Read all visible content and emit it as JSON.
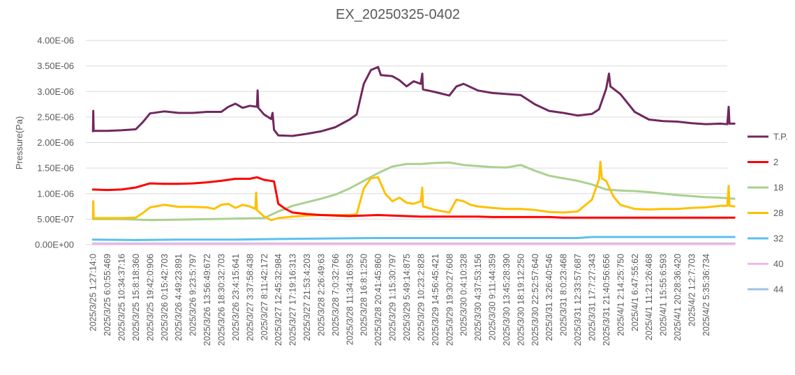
{
  "chart_data": {
    "type": "line",
    "title": "EX_20250325-0402",
    "ylabel": "Pressure(Pa)",
    "xlabel": "",
    "ylim": [
      0,
      4e-06
    ],
    "yticks": [
      {
        "value": 0,
        "label": "0.00E+00"
      },
      {
        "value": 5e-07,
        "label": "5.00E-07"
      },
      {
        "value": 1e-06,
        "label": "1.00E-06"
      },
      {
        "value": 1.5e-06,
        "label": "1.50E-06"
      },
      {
        "value": 2e-06,
        "label": "2.00E-06"
      },
      {
        "value": 2.5e-06,
        "label": "2.50E-06"
      },
      {
        "value": 3e-06,
        "label": "3.00E-06"
      },
      {
        "value": 3.5e-06,
        "label": "3.50E-06"
      },
      {
        "value": 4e-06,
        "label": "4.00E-06"
      }
    ],
    "grid": true,
    "legend_position": "right",
    "categories": [
      "2025/3/25 1:27:14:0",
      "2025/3/25 6:0:55:469",
      "2025/3/25 10:34:37:16",
      "2025/3/25 15:8:18:360",
      "2025/3/25 19:42:0:906",
      "2025/3/26 0:15:42:703",
      "2025/3/26 4:49:23:891",
      "2025/3/26 9:23:5:797",
      "2025/3/26 13:56:49:672",
      "2025/3/26 18:30:32:703",
      "2025/3/26 23:4:15:641",
      "2025/3/27 3:37:58:438",
      "2025/3/27 8:11:42:172",
      "2025/3/27 12:45:32:984",
      "2025/3/27 17:19:16:313",
      "2025/3/27 21:53:4:203",
      "2025/3/28 2:26:49:63",
      "2025/3/28 7:0:32:766",
      "2025/3/28 11:34:16:953",
      "2025/3/28 16:8:1:250",
      "2025/3/28 20:41:45:860",
      "2025/3/29 1:15:30:797",
      "2025/3/29 5:49:14:875",
      "2025/3/29 10:23:2:828",
      "2025/3/29 14:56:45:421",
      "2025/3/29 19:30:27:608",
      "2025/3/30 0:4:10:328",
      "2025/3/30 4:37:53:156",
      "2025/3/30 9:11:44:359",
      "2025/3/30 13:45:28:390",
      "2025/3/30 18:19:12:250",
      "2025/3/30 22:52:57:640",
      "2025/3/31 3:26:40:546",
      "2025/3/31 8:0:23:468",
      "2025/3/31 12:33:57:687",
      "2025/3/31 17:7:27:343",
      "2025/3/31 21:40:56:656",
      "2025/4/1 2:14:25:750",
      "2025/4/1 6:47:55:62",
      "2025/4/1 11:21:26:468",
      "2025/4/1 15:55:6:593",
      "2025/4/1 20:28:36:420",
      "2025/4/2 1:2:7:703",
      "2025/4/2 5:35:36:734"
    ],
    "series": [
      {
        "name": "T.P.",
        "color": "#70285f",
        "values": [
          [
            0,
            2.22e-06
          ],
          [
            0.02,
            2.62e-06
          ],
          [
            0.05,
            2.23e-06
          ],
          [
            1,
            2.23e-06
          ],
          [
            2,
            2.24e-06
          ],
          [
            3,
            2.26e-06
          ],
          [
            3.5,
            2.4e-06
          ],
          [
            4,
            2.57e-06
          ],
          [
            5,
            2.61e-06
          ],
          [
            6,
            2.58e-06
          ],
          [
            7,
            2.58e-06
          ],
          [
            8,
            2.6e-06
          ],
          [
            9,
            2.6e-06
          ],
          [
            9.5,
            2.7e-06
          ],
          [
            10,
            2.76e-06
          ],
          [
            10.5,
            2.68e-06
          ],
          [
            11,
            2.72e-06
          ],
          [
            11.5,
            2.7e-06
          ],
          [
            11.55,
            3.02e-06
          ],
          [
            11.6,
            2.68e-06
          ],
          [
            12,
            2.55e-06
          ],
          [
            12.5,
            2.46e-06
          ],
          [
            12.6,
            2.58e-06
          ],
          [
            12.7,
            2.25e-06
          ],
          [
            13,
            2.14e-06
          ],
          [
            14,
            2.13e-06
          ],
          [
            15,
            2.17e-06
          ],
          [
            16,
            2.22e-06
          ],
          [
            17,
            2.3e-06
          ],
          [
            18,
            2.45e-06
          ],
          [
            18.5,
            2.55e-06
          ],
          [
            19,
            3.15e-06
          ],
          [
            19.5,
            3.42e-06
          ],
          [
            20,
            3.48e-06
          ],
          [
            20.2,
            3.32e-06
          ],
          [
            21,
            3.3e-06
          ],
          [
            21.5,
            3.22e-06
          ],
          [
            22,
            3.1e-06
          ],
          [
            22.5,
            3.2e-06
          ],
          [
            23,
            3.15e-06
          ],
          [
            23.1,
            3.35e-06
          ],
          [
            23.15,
            3.04e-06
          ],
          [
            24,
            2.99e-06
          ],
          [
            25,
            2.92e-06
          ],
          [
            25.5,
            3.1e-06
          ],
          [
            26,
            3.15e-06
          ],
          [
            27,
            3.02e-06
          ],
          [
            28,
            2.97e-06
          ],
          [
            29,
            2.95e-06
          ],
          [
            30,
            2.93e-06
          ],
          [
            31,
            2.75e-06
          ],
          [
            32,
            2.62e-06
          ],
          [
            33,
            2.58e-06
          ],
          [
            34,
            2.53e-06
          ],
          [
            35,
            2.56e-06
          ],
          [
            35.5,
            2.65e-06
          ],
          [
            36,
            3.05e-06
          ],
          [
            36.2,
            3.35e-06
          ],
          [
            36.3,
            3.1e-06
          ],
          [
            37,
            2.95e-06
          ],
          [
            38,
            2.6e-06
          ],
          [
            39,
            2.45e-06
          ],
          [
            40,
            2.42e-06
          ],
          [
            41,
            2.41e-06
          ],
          [
            42,
            2.38e-06
          ],
          [
            43,
            2.36e-06
          ],
          [
            44,
            2.37e-06
          ],
          [
            44.5,
            2.36e-06
          ],
          [
            44.6,
            2.7e-06
          ],
          [
            44.65,
            2.37e-06
          ],
          [
            45,
            2.37e-06
          ]
        ]
      },
      {
        "name": "2",
        "color": "#ff0000",
        "values": [
          [
            0,
            1.08e-06
          ],
          [
            1,
            1.07e-06
          ],
          [
            2,
            1.08e-06
          ],
          [
            3,
            1.12e-06
          ],
          [
            4,
            1.2e-06
          ],
          [
            5,
            1.19e-06
          ],
          [
            6,
            1.19e-06
          ],
          [
            7,
            1.2e-06
          ],
          [
            8,
            1.22e-06
          ],
          [
            9,
            1.25e-06
          ],
          [
            10,
            1.29e-06
          ],
          [
            11,
            1.29e-06
          ],
          [
            11.5,
            1.32e-06
          ],
          [
            12,
            1.27e-06
          ],
          [
            12.7,
            1.24e-06
          ],
          [
            13,
            8e-07
          ],
          [
            13.5,
            7e-07
          ],
          [
            14,
            6.3e-07
          ],
          [
            15,
            6e-07
          ],
          [
            16,
            5.8e-07
          ],
          [
            17,
            5.7e-07
          ],
          [
            18,
            5.6e-07
          ],
          [
            19,
            5.7e-07
          ],
          [
            20,
            5.8e-07
          ],
          [
            21,
            5.7e-07
          ],
          [
            22,
            5.6e-07
          ],
          [
            23,
            5.5e-07
          ],
          [
            24,
            5.5e-07
          ],
          [
            25,
            5.5e-07
          ],
          [
            26,
            5.5e-07
          ],
          [
            27,
            5.5e-07
          ],
          [
            28,
            5.4e-07
          ],
          [
            29,
            5.4e-07
          ],
          [
            30,
            5.4e-07
          ],
          [
            31,
            5.4e-07
          ],
          [
            32,
            5.4e-07
          ],
          [
            33,
            5.3e-07
          ],
          [
            34,
            5.3e-07
          ],
          [
            35,
            5.3e-07
          ],
          [
            36,
            5.3e-07
          ],
          [
            37,
            5.3e-07
          ],
          [
            38,
            5.3e-07
          ],
          [
            39,
            5.3e-07
          ],
          [
            40,
            5.3e-07
          ],
          [
            41,
            5.3e-07
          ],
          [
            42,
            5.3e-07
          ],
          [
            43,
            5.3e-07
          ],
          [
            44,
            5.3e-07
          ],
          [
            45,
            5.3e-07
          ]
        ]
      },
      {
        "name": "18",
        "color": "#a9d18e",
        "values": [
          [
            0,
            5e-07
          ],
          [
            2,
            5e-07
          ],
          [
            4,
            4.8e-07
          ],
          [
            6,
            4.9e-07
          ],
          [
            8,
            5e-07
          ],
          [
            10,
            5.1e-07
          ],
          [
            12,
            5.2e-07
          ],
          [
            13,
            6.5e-07
          ],
          [
            14,
            7.6e-07
          ],
          [
            15,
            8.3e-07
          ],
          [
            16,
            9e-07
          ],
          [
            17,
            9.8e-07
          ],
          [
            18,
            1.1e-06
          ],
          [
            19,
            1.25e-06
          ],
          [
            20,
            1.4e-06
          ],
          [
            21,
            1.53e-06
          ],
          [
            22,
            1.58e-06
          ],
          [
            23,
            1.58e-06
          ],
          [
            24,
            1.6e-06
          ],
          [
            25,
            1.61e-06
          ],
          [
            26,
            1.56e-06
          ],
          [
            27,
            1.54e-06
          ],
          [
            28,
            1.52e-06
          ],
          [
            29,
            1.51e-06
          ],
          [
            30,
            1.56e-06
          ],
          [
            31,
            1.45e-06
          ],
          [
            32,
            1.35e-06
          ],
          [
            33,
            1.3e-06
          ],
          [
            34,
            1.25e-06
          ],
          [
            35,
            1.18e-06
          ],
          [
            36,
            1.08e-06
          ],
          [
            37,
            1.06e-06
          ],
          [
            38,
            1.05e-06
          ],
          [
            39,
            1.03e-06
          ],
          [
            40,
            1e-06
          ],
          [
            41,
            9.7e-07
          ],
          [
            42,
            9.5e-07
          ],
          [
            43,
            9.3e-07
          ],
          [
            44,
            9.2e-07
          ],
          [
            45,
            9e-07
          ]
        ]
      },
      {
        "name": "28",
        "color": "#ffc000",
        "values": [
          [
            0,
            5.2e-07
          ],
          [
            0.02,
            8.5e-07
          ],
          [
            0.05,
            5.2e-07
          ],
          [
            1,
            5.2e-07
          ],
          [
            2,
            5.2e-07
          ],
          [
            3,
            5.3e-07
          ],
          [
            3.5,
            6.2e-07
          ],
          [
            4,
            7.3e-07
          ],
          [
            5,
            7.8e-07
          ],
          [
            6,
            7.4e-07
          ],
          [
            7,
            7.4e-07
          ],
          [
            8,
            7.3e-07
          ],
          [
            8.5,
            7e-07
          ],
          [
            9,
            7.8e-07
          ],
          [
            9.5,
            8e-07
          ],
          [
            10,
            7.2e-07
          ],
          [
            10.5,
            7.8e-07
          ],
          [
            11,
            7.5e-07
          ],
          [
            11.4,
            7e-07
          ],
          [
            11.45,
            1.02e-06
          ],
          [
            11.5,
            6.8e-07
          ],
          [
            12,
            5.5e-07
          ],
          [
            12.5,
            4.8e-07
          ],
          [
            13,
            5.2e-07
          ],
          [
            14,
            5.5e-07
          ],
          [
            15,
            5.7e-07
          ],
          [
            16,
            5.8e-07
          ],
          [
            17,
            5.8e-07
          ],
          [
            18,
            5.8e-07
          ],
          [
            18.5,
            6e-07
          ],
          [
            19,
            1.1e-06
          ],
          [
            19.5,
            1.3e-06
          ],
          [
            20,
            1.32e-06
          ],
          [
            20.5,
            1e-06
          ],
          [
            21,
            8.5e-07
          ],
          [
            21.5,
            9.2e-07
          ],
          [
            22,
            8.2e-07
          ],
          [
            22.5,
            8e-07
          ],
          [
            23,
            8.5e-07
          ],
          [
            23.1,
            1.12e-06
          ],
          [
            23.15,
            7.5e-07
          ],
          [
            24,
            6.8e-07
          ],
          [
            25,
            6.3e-07
          ],
          [
            25.5,
            8.8e-07
          ],
          [
            26,
            8.5e-07
          ],
          [
            26.5,
            7.8e-07
          ],
          [
            27,
            7.5e-07
          ],
          [
            28,
            7.2e-07
          ],
          [
            29,
            7e-07
          ],
          [
            30,
            7e-07
          ],
          [
            31,
            6.8e-07
          ],
          [
            32,
            6.4e-07
          ],
          [
            33,
            6.3e-07
          ],
          [
            34,
            6.5e-07
          ],
          [
            35,
            8.8e-07
          ],
          [
            35.5,
            1.28e-06
          ],
          [
            35.6,
            1.62e-06
          ],
          [
            35.7,
            1.3e-06
          ],
          [
            36,
            1.25e-06
          ],
          [
            36.5,
            9.5e-07
          ],
          [
            37,
            7.8e-07
          ],
          [
            38,
            7e-07
          ],
          [
            39,
            6.9e-07
          ],
          [
            40,
            7e-07
          ],
          [
            41,
            7e-07
          ],
          [
            42,
            7.2e-07
          ],
          [
            43,
            7.3e-07
          ],
          [
            44,
            7.6e-07
          ],
          [
            44.5,
            7.6e-07
          ],
          [
            44.6,
            1.15e-06
          ],
          [
            44.65,
            7.6e-07
          ],
          [
            45,
            7.5e-07
          ]
        ]
      },
      {
        "name": "32",
        "color": "#5bc0eb",
        "values": [
          [
            0,
            1e-07
          ],
          [
            3,
            9e-08
          ],
          [
            6,
            1e-07
          ],
          [
            10,
            1e-07
          ],
          [
            13,
            1.1e-07
          ],
          [
            16,
            1.2e-07
          ],
          [
            20,
            1.3e-07
          ],
          [
            25,
            1.3e-07
          ],
          [
            30,
            1.3e-07
          ],
          [
            34,
            1.3e-07
          ],
          [
            35,
            1.5e-07
          ],
          [
            40,
            1.5e-07
          ],
          [
            45,
            1.5e-07
          ]
        ]
      },
      {
        "name": "40",
        "color": "#f4b8e4",
        "values": [
          [
            0,
            1e-08
          ],
          [
            45,
            1e-08
          ]
        ]
      },
      {
        "name": "44",
        "color": "#9dc3e6",
        "values": [
          [
            0,
            2e-08
          ],
          [
            45,
            2e-08
          ]
        ]
      }
    ]
  }
}
